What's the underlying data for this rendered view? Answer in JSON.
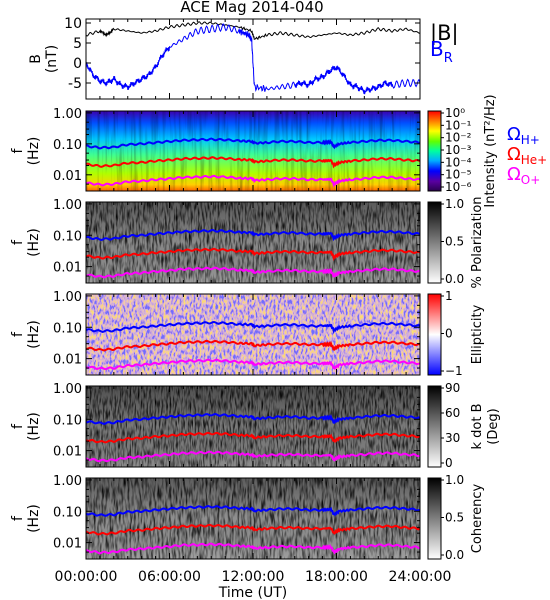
{
  "title": "ACE Mag 2014-040",
  "chart_data": [
    {
      "type": "line",
      "ylabel": [
        "B",
        "(nT)"
      ],
      "yticks": [
        10,
        5,
        0,
        -5
      ],
      "ylim": [
        -9,
        11
      ],
      "xlim": [
        0,
        24
      ],
      "series": [
        {
          "name": "|B|",
          "color": "#000000",
          "x": [
            0,
            1,
            1.5,
            2,
            3,
            4,
            5,
            6,
            7,
            8,
            9,
            10,
            11,
            11.9,
            12.1,
            13,
            14,
            15,
            16,
            17,
            18,
            19,
            20,
            21,
            22,
            23,
            24
          ],
          "y": [
            7,
            8,
            7,
            8.5,
            8,
            7.5,
            8,
            9,
            9.5,
            10,
            10,
            9.5,
            9,
            8,
            6,
            7,
            7.5,
            7,
            6.5,
            7,
            7.5,
            7,
            7.5,
            8.5,
            8,
            8.5,
            7.5
          ]
        },
        {
          "name": "B_R",
          "color": "#0000ff",
          "x": [
            0,
            0.5,
            1,
            1.5,
            2,
            2.5,
            3,
            3.5,
            4,
            4.5,
            5,
            5.5,
            6,
            7,
            8,
            9,
            10,
            11,
            11.7,
            11.9,
            12.1,
            13,
            14,
            15,
            15.5,
            16,
            16.5,
            17,
            17.5,
            18,
            18.5,
            19,
            19.5,
            20,
            20.5,
            21,
            21.5,
            22,
            23,
            24
          ],
          "y": [
            0,
            -3,
            -4.5,
            -5,
            -4,
            -5.5,
            -6,
            -5,
            -4,
            -3,
            -1,
            2,
            4,
            6,
            8,
            8.5,
            9,
            8,
            7,
            6,
            -6,
            -6.5,
            -6,
            -5.5,
            -5,
            -5.5,
            -4,
            -3.5,
            -2,
            -1,
            -3,
            -5.5,
            -6,
            -7,
            -6.5,
            -6,
            -5,
            -5.5,
            -5,
            -5
          ]
        }
      ],
      "legend": [
        "|B|",
        "B_R"
      ]
    },
    {
      "type": "heatmap",
      "ylabel": [
        "f",
        "(Hz)"
      ],
      "yticks": [
        "1.00",
        "0.10",
        "0.01"
      ],
      "ylim": [
        0.003,
        1.0
      ],
      "xlim": [
        0,
        24
      ],
      "colorbar": {
        "label": "Intensity (nT²/Hz)",
        "ticks": [
          "10⁰",
          "10⁻¹",
          "10⁻²",
          "10⁻³",
          "10⁻⁴",
          "10⁻⁵",
          "10⁻⁶"
        ],
        "colormap": "rainbow"
      },
      "gyro_lines": [
        {
          "name": "Ω_H+",
          "color": "#0000ff"
        },
        {
          "name": "Ω_He+",
          "color": "#ff0000"
        },
        {
          "name": "Ω_O+",
          "color": "#ff00ff"
        }
      ]
    },
    {
      "type": "heatmap",
      "ylabel": [
        "f",
        "(Hz)"
      ],
      "yticks": [
        "1.00",
        "0.10",
        "0.01"
      ],
      "colorbar": {
        "label": "% Polarization",
        "ticks": [
          "1.0",
          "0.5",
          "0.0"
        ],
        "colormap": "gray"
      }
    },
    {
      "type": "heatmap",
      "ylabel": [
        "f",
        "(Hz)"
      ],
      "yticks": [
        "1.00",
        "0.10",
        "0.01"
      ],
      "colorbar": {
        "label": "Ellipticity",
        "ticks": [
          "1",
          "0",
          "−1"
        ],
        "colormap": "blue-white-red"
      }
    },
    {
      "type": "heatmap",
      "ylabel": [
        "f",
        "(Hz)"
      ],
      "yticks": [
        "1.00",
        "0.10",
        "0.01"
      ],
      "colorbar": {
        "label": [
          "k dot B",
          "(Deg)"
        ],
        "ticks": [
          "90",
          "60",
          "30",
          "0"
        ],
        "colormap": "gray"
      }
    },
    {
      "type": "heatmap",
      "ylabel": [
        "f",
        "(Hz)"
      ],
      "yticks": [
        "1.00",
        "0.10",
        "0.01"
      ],
      "colorbar": {
        "label": "Coherency",
        "ticks": [
          "1.0",
          "0.5",
          "0.0"
        ],
        "colormap": "gray"
      }
    }
  ],
  "gyrofrequency_curves": {
    "x": [
      0,
      1,
      2,
      3,
      4,
      5,
      6,
      7,
      8,
      9,
      10,
      11,
      11.9,
      12.1,
      13,
      14,
      15,
      16,
      17,
      17.6,
      17.8,
      18.2,
      19,
      20,
      21,
      22,
      23,
      24
    ],
    "H": [
      0.085,
      0.075,
      0.078,
      0.095,
      0.1,
      0.11,
      0.12,
      0.13,
      0.135,
      0.14,
      0.135,
      0.125,
      0.12,
      0.105,
      0.11,
      0.12,
      0.12,
      0.11,
      0.11,
      0.115,
      0.08,
      0.1,
      0.11,
      0.12,
      0.13,
      0.13,
      0.12,
      0.11
    ],
    "He": [
      0.022,
      0.019,
      0.02,
      0.024,
      0.025,
      0.028,
      0.03,
      0.033,
      0.034,
      0.035,
      0.034,
      0.031,
      0.03,
      0.026,
      0.028,
      0.03,
      0.03,
      0.028,
      0.028,
      0.029,
      0.02,
      0.025,
      0.028,
      0.03,
      0.033,
      0.033,
      0.03,
      0.028
    ],
    "O": [
      0.0055,
      0.0048,
      0.005,
      0.006,
      0.0063,
      0.007,
      0.0075,
      0.0083,
      0.0085,
      0.0088,
      0.0085,
      0.0078,
      0.0075,
      0.0066,
      0.007,
      0.0075,
      0.0075,
      0.007,
      0.007,
      0.0072,
      0.005,
      0.0063,
      0.007,
      0.0075,
      0.0083,
      0.0083,
      0.0075,
      0.007
    ]
  },
  "xaxis": {
    "ticks": [
      "00:00:00",
      "06:00:00",
      "12:00:00",
      "18:00:00",
      "24:00:00"
    ],
    "label": "Time (UT)"
  },
  "legend_b": {
    "mag": "|B|",
    "br_main": "B",
    "br_sub": "R"
  },
  "legend_omega": [
    {
      "sym": "Ω",
      "sub": "H+",
      "color": "#0000ff"
    },
    {
      "sym": "Ω",
      "sub": "He+",
      "color": "#ff0000"
    },
    {
      "sym": "Ω",
      "sub": "O+",
      "color": "#ff00ff"
    }
  ]
}
